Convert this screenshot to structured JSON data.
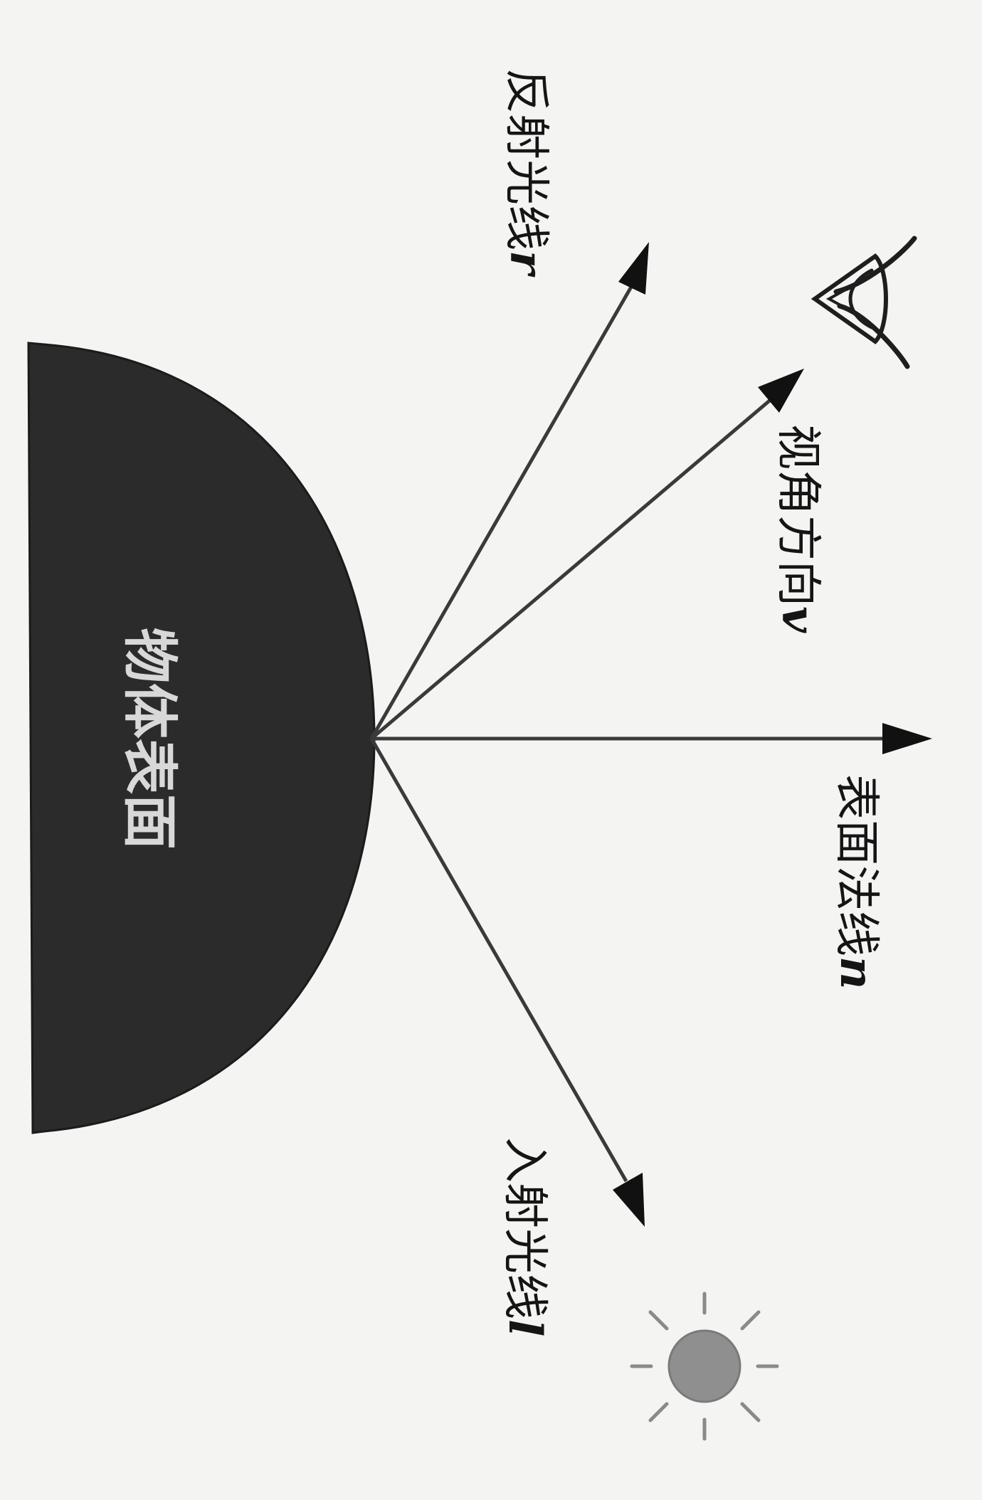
{
  "diagram": {
    "surface_label": "物体表面",
    "labels": {
      "reflected": {
        "text": "反射光线",
        "symbol": "r"
      },
      "view": {
        "text": "视角方向",
        "symbol": "v"
      },
      "normal": {
        "text": "表面法线",
        "symbol": "n"
      },
      "incident": {
        "text": "入射光线",
        "symbol": "l"
      }
    },
    "icons": [
      "eye-icon",
      "sun-icon"
    ],
    "colors": {
      "surface": "#2b2b2b",
      "rays": "#3a3a3a",
      "sun": "#8f8f8f",
      "background": "#f4f4f2"
    }
  }
}
